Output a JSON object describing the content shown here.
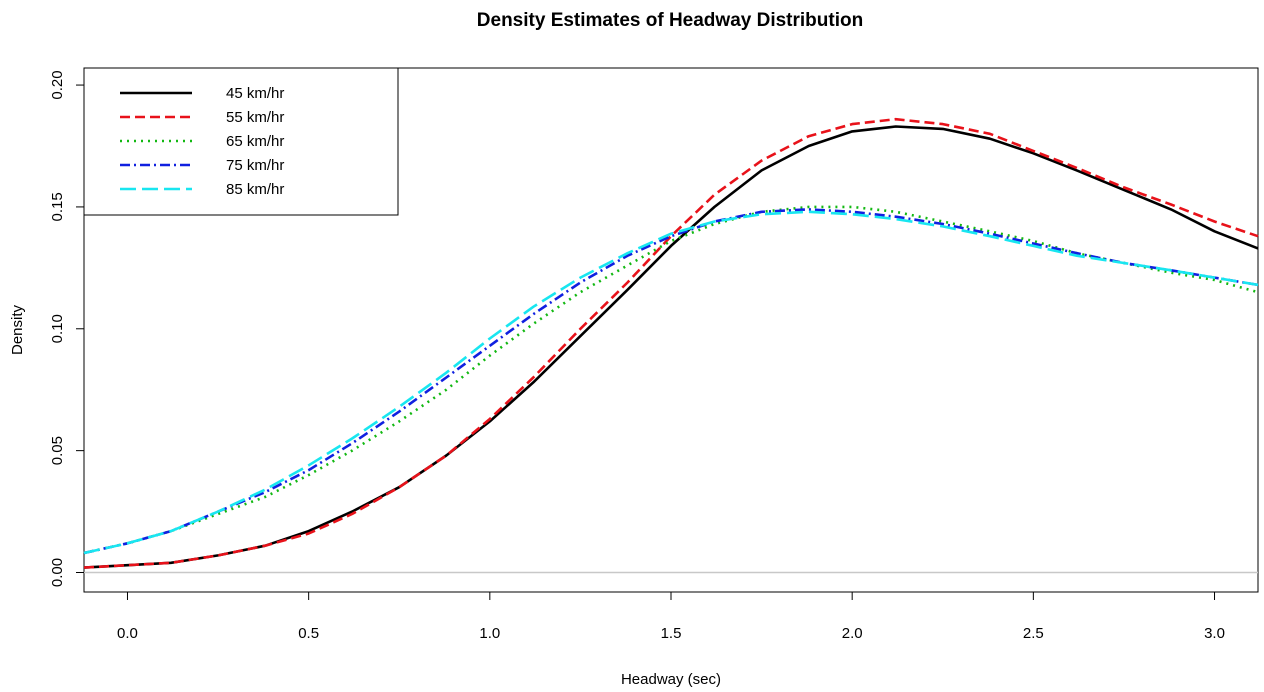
{
  "chart_data": {
    "type": "line",
    "title": "Density Estimates of Headway Distribution",
    "xlabel": "Headway (sec)",
    "ylabel": "Density",
    "xlim": [
      -0.12,
      3.12
    ],
    "ylim": [
      -0.008,
      0.207
    ],
    "xticks": [
      "0.0",
      "0.5",
      "1.0",
      "1.5",
      "2.0",
      "2.5",
      "3.0"
    ],
    "yticks": [
      "0.00",
      "0.05",
      "0.10",
      "0.15",
      "0.20"
    ],
    "hline": 0,
    "legend_position": "top-left",
    "series": [
      {
        "name": "45 km/hr",
        "color": "#000000",
        "style": "solid",
        "x": [
          -0.12,
          0.0,
          0.12,
          0.25,
          0.38,
          0.5,
          0.62,
          0.75,
          0.88,
          1.0,
          1.12,
          1.25,
          1.38,
          1.5,
          1.62,
          1.75,
          1.88,
          2.0,
          2.12,
          2.25,
          2.38,
          2.5,
          2.62,
          2.75,
          2.88,
          3.0,
          3.12
        ],
        "y": [
          0.002,
          0.003,
          0.004,
          0.007,
          0.011,
          0.017,
          0.025,
          0.035,
          0.048,
          0.062,
          0.078,
          0.097,
          0.116,
          0.134,
          0.15,
          0.165,
          0.175,
          0.181,
          0.183,
          0.182,
          0.178,
          0.172,
          0.165,
          0.157,
          0.149,
          0.14,
          0.133
        ]
      },
      {
        "name": "55 km/hr",
        "color": "#e8121a",
        "style": "dashed",
        "x": [
          -0.12,
          0.0,
          0.12,
          0.25,
          0.38,
          0.5,
          0.62,
          0.75,
          0.88,
          1.0,
          1.12,
          1.25,
          1.38,
          1.5,
          1.62,
          1.75,
          1.88,
          2.0,
          2.12,
          2.25,
          2.38,
          2.5,
          2.62,
          2.75,
          2.88,
          3.0,
          3.12
        ],
        "y": [
          0.002,
          0.003,
          0.004,
          0.007,
          0.011,
          0.016,
          0.024,
          0.035,
          0.048,
          0.063,
          0.08,
          0.1,
          0.119,
          0.138,
          0.155,
          0.169,
          0.179,
          0.184,
          0.186,
          0.184,
          0.18,
          0.173,
          0.166,
          0.158,
          0.151,
          0.144,
          0.138
        ]
      },
      {
        "name": "65 km/hr",
        "color": "#12b812",
        "style": "dotted",
        "x": [
          -0.12,
          0.0,
          0.12,
          0.25,
          0.38,
          0.5,
          0.62,
          0.75,
          0.88,
          1.0,
          1.12,
          1.25,
          1.38,
          1.5,
          1.62,
          1.75,
          1.88,
          2.0,
          2.12,
          2.25,
          2.38,
          2.5,
          2.62,
          2.75,
          2.88,
          3.0,
          3.12
        ],
        "y": [
          0.008,
          0.012,
          0.017,
          0.024,
          0.031,
          0.04,
          0.05,
          0.062,
          0.075,
          0.089,
          0.102,
          0.115,
          0.126,
          0.136,
          0.143,
          0.148,
          0.15,
          0.15,
          0.148,
          0.144,
          0.14,
          0.136,
          0.131,
          0.127,
          0.123,
          0.12,
          0.115
        ]
      },
      {
        "name": "75 km/hr",
        "color": "#1020e0",
        "style": "dashdot",
        "x": [
          -0.12,
          0.0,
          0.12,
          0.25,
          0.38,
          0.5,
          0.62,
          0.75,
          0.88,
          1.0,
          1.12,
          1.25,
          1.38,
          1.5,
          1.62,
          1.75,
          1.88,
          2.0,
          2.12,
          2.25,
          2.38,
          2.5,
          2.62,
          2.75,
          2.88,
          3.0,
          3.12
        ],
        "y": [
          0.008,
          0.012,
          0.017,
          0.025,
          0.033,
          0.042,
          0.053,
          0.066,
          0.08,
          0.093,
          0.106,
          0.119,
          0.13,
          0.138,
          0.144,
          0.148,
          0.149,
          0.148,
          0.146,
          0.143,
          0.139,
          0.135,
          0.131,
          0.127,
          0.124,
          0.121,
          0.118
        ]
      },
      {
        "name": "85 km/hr",
        "color": "#18e6f0",
        "style": "longdash",
        "x": [
          -0.12,
          0.0,
          0.12,
          0.25,
          0.38,
          0.5,
          0.62,
          0.75,
          0.88,
          1.0,
          1.12,
          1.25,
          1.38,
          1.5,
          1.62,
          1.75,
          1.88,
          2.0,
          2.12,
          2.25,
          2.38,
          2.5,
          2.62,
          2.75,
          2.88,
          3.0,
          3.12
        ],
        "y": [
          0.008,
          0.012,
          0.017,
          0.025,
          0.034,
          0.044,
          0.055,
          0.068,
          0.082,
          0.096,
          0.109,
          0.121,
          0.131,
          0.139,
          0.144,
          0.147,
          0.148,
          0.147,
          0.145,
          0.142,
          0.138,
          0.134,
          0.13,
          0.127,
          0.124,
          0.121,
          0.118
        ]
      }
    ]
  }
}
